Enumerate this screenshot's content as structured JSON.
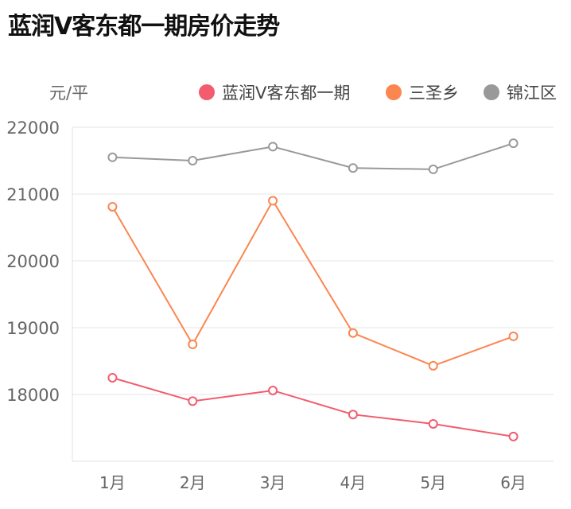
{
  "chart_data": {
    "type": "line",
    "title": "蓝润V客东都一期房价走势",
    "ylabel": "元/平",
    "xlabel": "",
    "categories": [
      "1月",
      "2月",
      "3月",
      "4月",
      "5月",
      "6月"
    ],
    "ylim": [
      17000,
      22000
    ],
    "yticks": [
      18000,
      19000,
      20000,
      21000,
      22000
    ],
    "grid": true,
    "legend_position": "top-right",
    "series": [
      {
        "name": "蓝润V客东都一期",
        "color": "#f25c6e",
        "values": [
          18250,
          17900,
          18060,
          17700,
          17560,
          17370
        ]
      },
      {
        "name": "三圣乡",
        "color": "#fb8650",
        "values": [
          20810,
          18750,
          20900,
          18920,
          18430,
          18870
        ]
      },
      {
        "name": "锦江区",
        "color": "#999999",
        "values": [
          21550,
          21500,
          21710,
          21390,
          21370,
          21760
        ]
      }
    ]
  }
}
